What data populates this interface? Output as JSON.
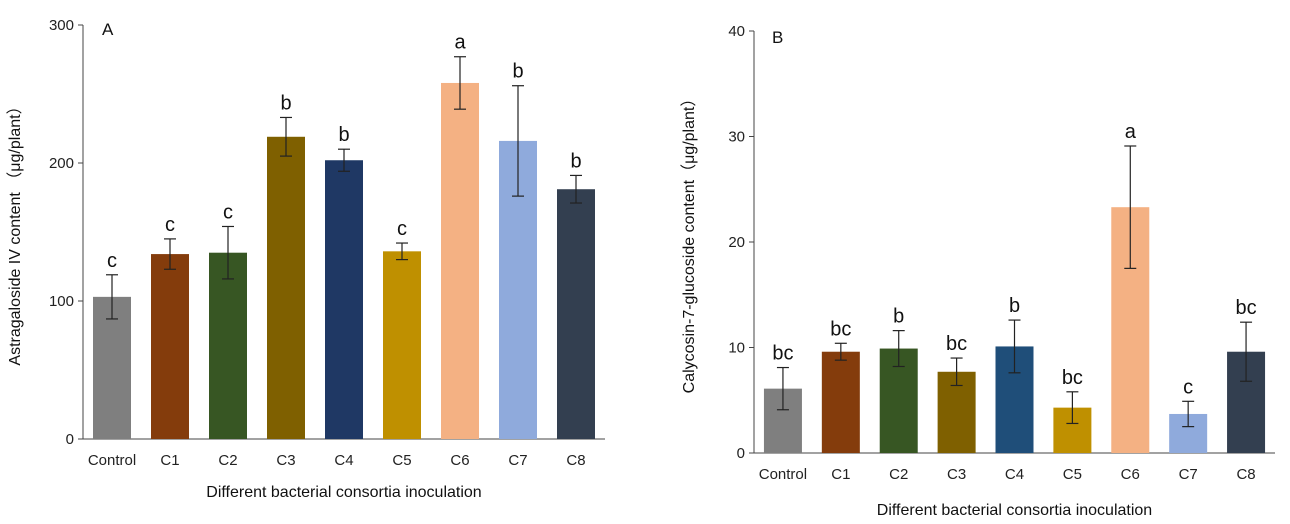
{
  "chart_data": [
    {
      "type": "bar",
      "panel_label": "A",
      "categories": [
        "Control",
        "C1",
        "C2",
        "C3",
        "C4",
        "C5",
        "C6",
        "C7",
        "C8"
      ],
      "values": [
        103,
        134,
        135,
        219,
        202,
        136,
        258,
        216,
        181
      ],
      "errors": [
        16,
        11,
        19,
        14,
        8,
        6,
        19,
        40,
        10
      ],
      "significance": [
        "c",
        "c",
        "c",
        "b",
        "b",
        "c",
        "a",
        "b",
        "b"
      ],
      "colors": [
        "#7f7f7f",
        "#843c0c",
        "#375623",
        "#7f6000",
        "#1f3864",
        "#bf9000",
        "#f4b183",
        "#8faadc",
        "#333f50"
      ],
      "ylim": [
        0,
        300
      ],
      "yticks": [
        0,
        100,
        200,
        300
      ],
      "xlabel": "Different bacterial consortia inoculation",
      "ylabel": "Astragaloside IV content （μg/plant）"
    },
    {
      "type": "bar",
      "panel_label": "B",
      "categories": [
        "Control",
        "C1",
        "C2",
        "C3",
        "C4",
        "C5",
        "C6",
        "C7",
        "C8"
      ],
      "values": [
        6.1,
        9.6,
        9.9,
        7.7,
        10.1,
        4.3,
        23.3,
        3.7,
        9.6
      ],
      "errors": [
        2.0,
        0.8,
        1.7,
        1.3,
        2.5,
        1.5,
        5.8,
        1.2,
        2.8
      ],
      "significance": [
        "bc",
        "bc",
        "b",
        "bc",
        "b",
        "bc",
        "a",
        "c",
        "bc"
      ],
      "colors": [
        "#7f7f7f",
        "#843c0c",
        "#375623",
        "#7f6000",
        "#1f4e79",
        "#bf9000",
        "#f4b183",
        "#8faadc",
        "#333f50"
      ],
      "ylim": [
        0,
        40
      ],
      "yticks": [
        0,
        10,
        20,
        30,
        40
      ],
      "xlabel": "Different bacterial consortia inoculation",
      "ylabel": "Calycosin-7-glucoside content（μg/plant）"
    }
  ]
}
